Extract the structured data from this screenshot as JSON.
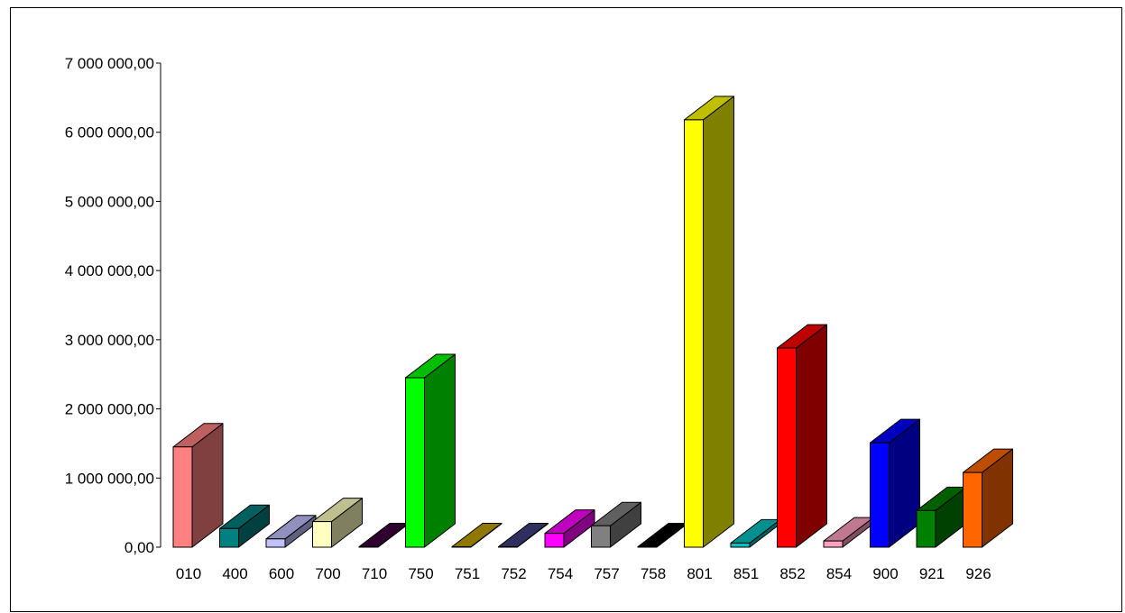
{
  "chart_data": {
    "type": "bar",
    "title": "",
    "xlabel": "",
    "ylabel": "",
    "ylim": [
      0,
      7000000
    ],
    "yticks": [
      {
        "value": 0,
        "label": "0,00"
      },
      {
        "value": 1000000,
        "label": "1 000 000,00"
      },
      {
        "value": 2000000,
        "label": "2 000 000,00"
      },
      {
        "value": 3000000,
        "label": "3 000 000,00"
      },
      {
        "value": 4000000,
        "label": "4 000 000,00"
      },
      {
        "value": 5000000,
        "label": "5 000 000,00"
      },
      {
        "value": 6000000,
        "label": "6 000 000,00"
      },
      {
        "value": 7000000,
        "label": "7 000 000,00"
      }
    ],
    "grid": false,
    "legend": "none",
    "style": "3d",
    "categories": [
      "010",
      "400",
      "600",
      "700",
      "710",
      "750",
      "751",
      "752",
      "754",
      "757",
      "758",
      "801",
      "851",
      "852",
      "854",
      "900",
      "921",
      "926"
    ],
    "values": [
      1450000,
      270000,
      120000,
      370000,
      5000,
      2450000,
      5000,
      5000,
      200000,
      310000,
      5000,
      6180000,
      60000,
      2880000,
      90000,
      1510000,
      530000,
      1080000
    ],
    "colors": [
      "#FF8080",
      "#008080",
      "#C0C0FF",
      "#FFFFC0",
      "#400040",
      "#00FF00",
      "#C0A000",
      "#404080",
      "#FF00FF",
      "#808080",
      "#000000",
      "#FFFF00",
      "#00C0C0",
      "#FF0000",
      "#FFA0C0",
      "#0000FF",
      "#008000",
      "#FF6600"
    ]
  }
}
